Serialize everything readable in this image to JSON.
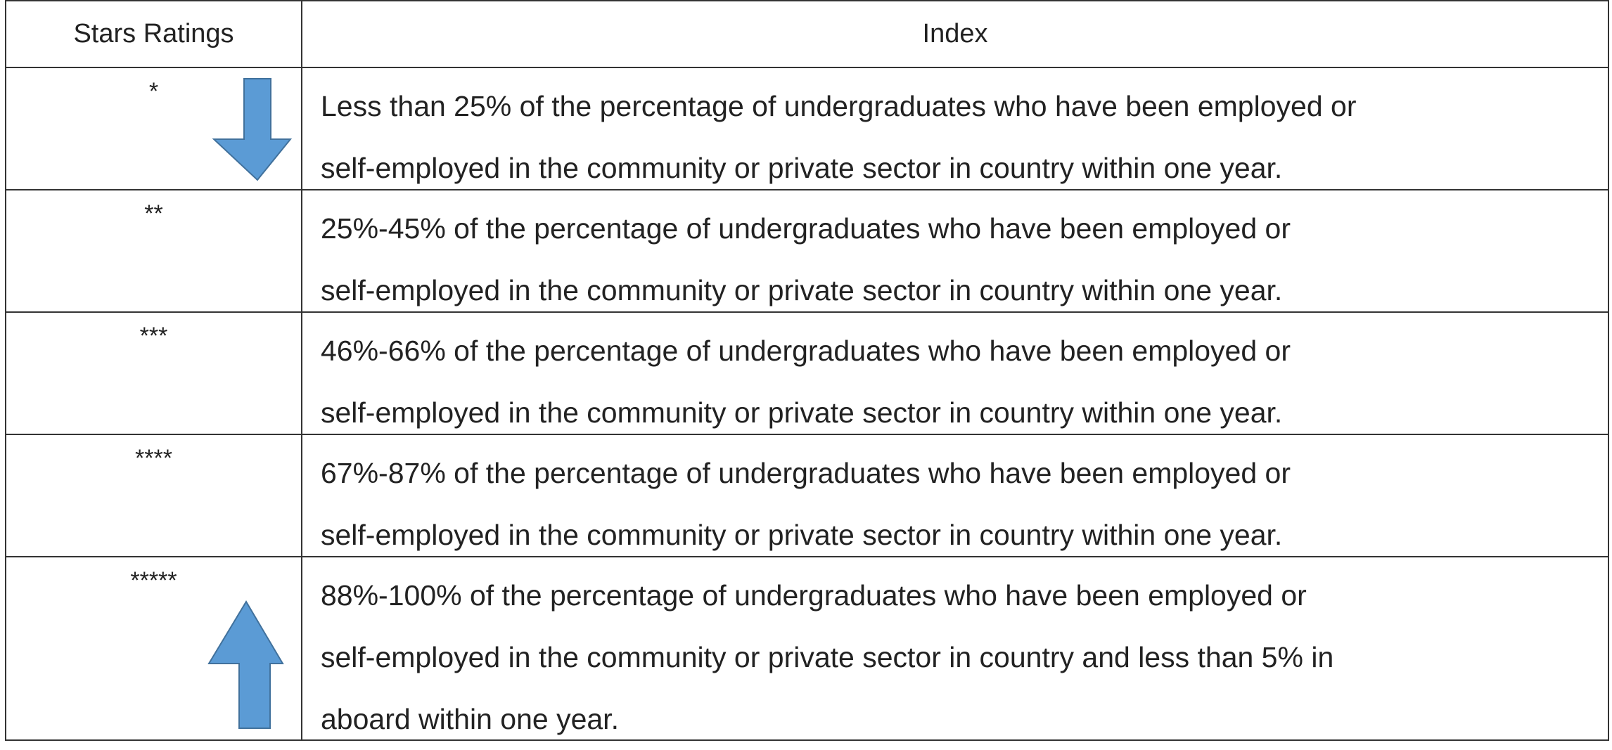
{
  "table": {
    "header": [
      "Stars Ratings",
      "Index"
    ],
    "rows": [
      {
        "rating": "*",
        "index": [
          "Less than 25% of the percentage of undergraduates who have been employed or",
          "self-employed in the community or private sector in country within one year."
        ]
      },
      {
        "rating": "**",
        "index": [
          "25%-45% of the percentage of undergraduates who have been employed or",
          "self-employed in the community or private sector in country within one year."
        ]
      },
      {
        "rating": "***",
        "index": [
          "46%-66% of the percentage of undergraduates who have been employed or",
          "self-employed in the community or private sector in country within one year."
        ]
      },
      {
        "rating": "****",
        "index": [
          "67%-87% of the percentage of undergraduates who have been employed or",
          "self-employed in the community or private sector in country within one year."
        ]
      },
      {
        "rating": "*****",
        "index": [
          "88%-100% of the percentage of undergraduates who have been employed or",
          "self-employed in the community or private sector in country and less than 5% in",
          "aboard within one year."
        ]
      }
    ]
  }
}
